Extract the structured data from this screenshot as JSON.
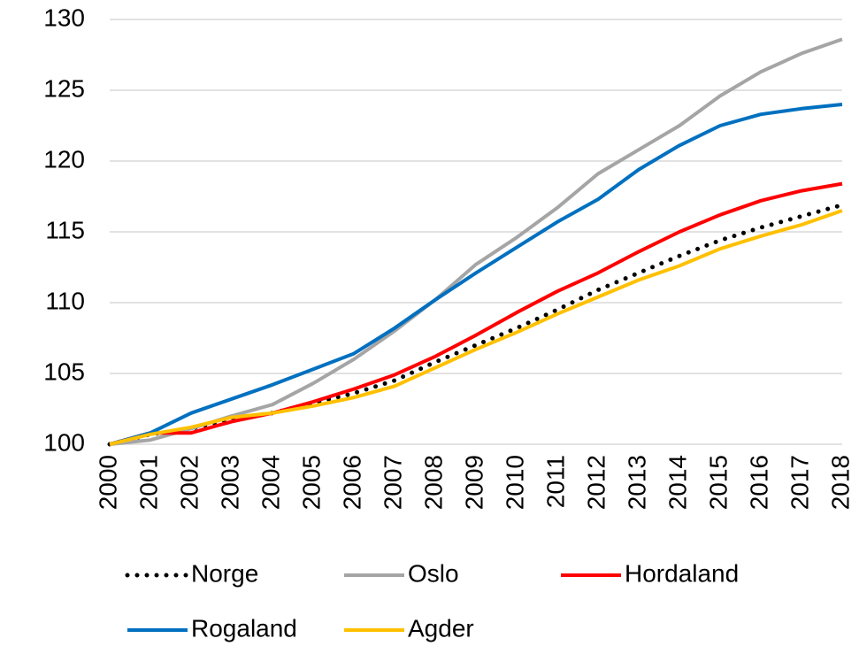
{
  "chart_data": {
    "type": "line",
    "categories": [
      "2000",
      "2001",
      "2002",
      "2003",
      "2004",
      "2005",
      "2006",
      "2007",
      "2008",
      "2009",
      "2010",
      "2011",
      "2012",
      "2013",
      "2014",
      "2015",
      "2016",
      "2017",
      "2018"
    ],
    "series": [
      {
        "name": "Norge",
        "color": "#000000",
        "dash": "dotted",
        "values": [
          100,
          100.7,
          101.1,
          101.8,
          102.2,
          102.9,
          103.6,
          104.5,
          105.8,
          107.0,
          108.2,
          109.5,
          110.9,
          112.1,
          113.3,
          114.4,
          115.3,
          116.1,
          116.9
        ]
      },
      {
        "name": "Oslo",
        "color": "#a5a5a5",
        "values": [
          100,
          100.3,
          101.1,
          102.0,
          102.8,
          104.3,
          106.0,
          108.0,
          110.2,
          112.7,
          114.6,
          116.7,
          119.1,
          120.8,
          122.5,
          124.6,
          126.3,
          127.6,
          128.6
        ]
      },
      {
        "name": "Hordaland",
        "color": "#ff0000",
        "values": [
          100,
          100.8,
          100.8,
          101.6,
          102.2,
          103.0,
          103.9,
          104.9,
          106.2,
          107.7,
          109.3,
          110.8,
          112.1,
          113.6,
          115.0,
          116.2,
          117.2,
          117.9,
          118.4
        ]
      },
      {
        "name": "Rogaland",
        "color": "#0070c0",
        "values": [
          100,
          100.8,
          102.2,
          103.2,
          104.2,
          105.3,
          106.4,
          108.2,
          110.2,
          112.1,
          113.9,
          115.7,
          117.3,
          119.4,
          121.1,
          122.5,
          123.3,
          123.7,
          124.0
        ]
      },
      {
        "name": "Agder",
        "color": "#ffc000",
        "values": [
          100,
          100.7,
          101.2,
          101.9,
          102.2,
          102.7,
          103.3,
          104.1,
          105.4,
          106.7,
          107.9,
          109.2,
          110.4,
          111.6,
          112.6,
          113.8,
          114.7,
          115.5,
          116.5
        ]
      }
    ],
    "ylim": [
      100,
      130
    ],
    "yticks": [
      100,
      105,
      110,
      115,
      120,
      125,
      130
    ],
    "grid": true,
    "legend": "bottom"
  }
}
